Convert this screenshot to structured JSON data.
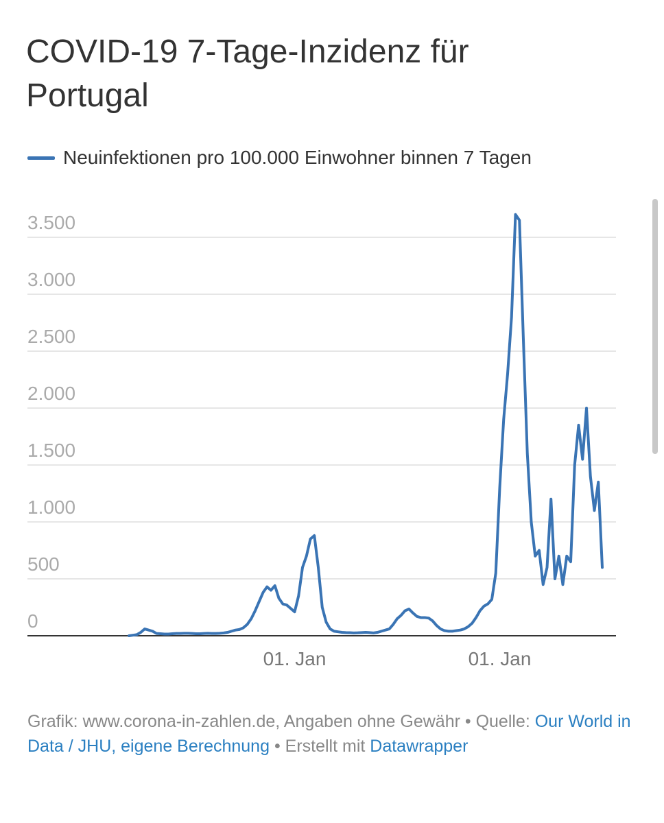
{
  "chart_data": {
    "type": "line",
    "title": "COVID-19 7-Tage-Inzidenz für Portugal",
    "categories": [
      null,
      null,
      null,
      null,
      null,
      null,
      null,
      null,
      null,
      null,
      null,
      null,
      null,
      null,
      null,
      null,
      null,
      null,
      null,
      null,
      null,
      null,
      null,
      null,
      null,
      null,
      null,
      null,
      null,
      null,
      null,
      null,
      null,
      null,
      null,
      null,
      null,
      null,
      null,
      null,
      null,
      null,
      "01. Jan",
      null,
      null,
      null,
      null,
      null,
      null,
      null,
      null,
      null,
      null,
      null,
      null,
      null,
      null,
      null,
      null,
      null,
      null,
      null,
      null,
      null,
      null,
      null,
      null,
      null,
      null,
      null,
      null,
      null,
      null,
      null,
      null,
      null,
      null,
      null,
      null,
      null,
      null,
      null,
      null,
      null,
      null,
      null,
      null,
      null,
      null,
      null,
      null,
      null,
      null,
      null,
      "01. Jan",
      null,
      null,
      null,
      null,
      null,
      null,
      null,
      null,
      null,
      null,
      null,
      null,
      null,
      null,
      null,
      null,
      null,
      null,
      null,
      null,
      null,
      null,
      null,
      null,
      null,
      null
    ],
    "series": [
      {
        "name": "Neuinfektionen pro 100.000 Einwohner binnen 7 Tagen",
        "color": "#3a74b4",
        "values": [
          0,
          5,
          10,
          30,
          60,
          50,
          40,
          20,
          18,
          15,
          15,
          18,
          20,
          20,
          22,
          22,
          20,
          18,
          18,
          20,
          22,
          20,
          20,
          22,
          25,
          30,
          40,
          50,
          55,
          70,
          100,
          150,
          220,
          300,
          380,
          430,
          400,
          440,
          330,
          280,
          270,
          240,
          210,
          350,
          600,
          700,
          850,
          880,
          600,
          250,
          120,
          60,
          40,
          35,
          30,
          28,
          27,
          25,
          26,
          28,
          30,
          28,
          25,
          30,
          40,
          50,
          60,
          100,
          150,
          180,
          220,
          235,
          200,
          170,
          160,
          160,
          155,
          130,
          90,
          60,
          45,
          40,
          40,
          45,
          50,
          60,
          80,
          110,
          160,
          220,
          260,
          280,
          320,
          550,
          1300,
          1900,
          2300,
          2800,
          3700,
          3650,
          2600,
          1600,
          1000,
          700,
          750,
          450,
          600,
          1200,
          500,
          700,
          450,
          700,
          650,
          1500,
          1850,
          1550,
          2000,
          1400,
          1100,
          1350,
          600
        ]
      }
    ],
    "ylim": [
      0,
      3500
    ],
    "yticks": [
      0,
      500,
      {
        "value": 1000,
        "label": "1.000"
      },
      {
        "value": 1500,
        "label": "1.500"
      },
      {
        "value": 2000,
        "label": "2.000"
      },
      {
        "value": 2500,
        "label": "2.500"
      },
      {
        "value": 3000,
        "label": "3.000"
      },
      {
        "value": 3500,
        "label": "3.500"
      }
    ],
    "grid": true
  },
  "footer": {
    "credit": "Grafik: www.corona-in-zahlen.de, Angaben ohne Gewähr • Quelle:",
    "source_link": "Our World in Data / JHU, eigene Berechnung",
    "made_with": "• Erstellt mit",
    "tool_link": "Datawrapper"
  }
}
